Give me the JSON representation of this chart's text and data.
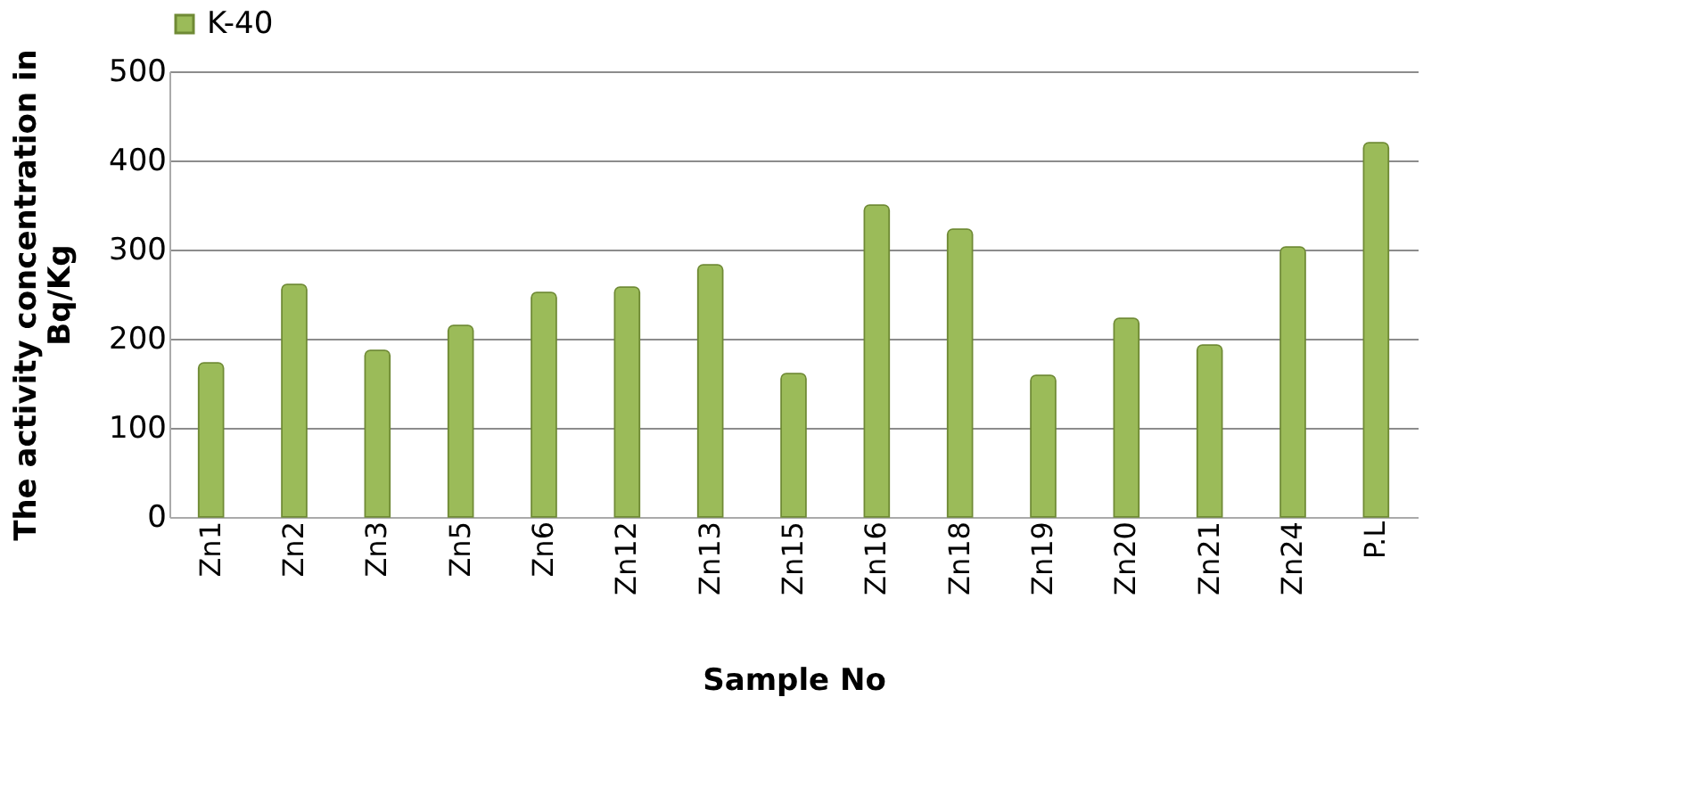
{
  "chart_data": {
    "type": "bar",
    "xlabel": "Sample No",
    "ylabel": "The activity concentration in Bq/Kg",
    "categories": [
      "Zn1",
      "Zn2",
      "Zn3",
      "Zn5",
      "Zn6",
      "Zn12",
      "Zn13",
      "Zn15",
      "Zn16",
      "Zn18",
      "Zn19",
      "Zn20",
      "Zn21",
      "Zn24",
      "P.L"
    ],
    "series": [
      {
        "name": "K-40",
        "color": "#9bbb59",
        "values": [
          173,
          261,
          187,
          215,
          252,
          258,
          283,
          161,
          350,
          323,
          159,
          223,
          193,
          303,
          420
        ]
      }
    ],
    "ylim": [
      0,
      500
    ],
    "yticks": [
      0,
      100,
      200,
      300,
      400,
      500
    ],
    "grid": "y",
    "legend": "top"
  }
}
